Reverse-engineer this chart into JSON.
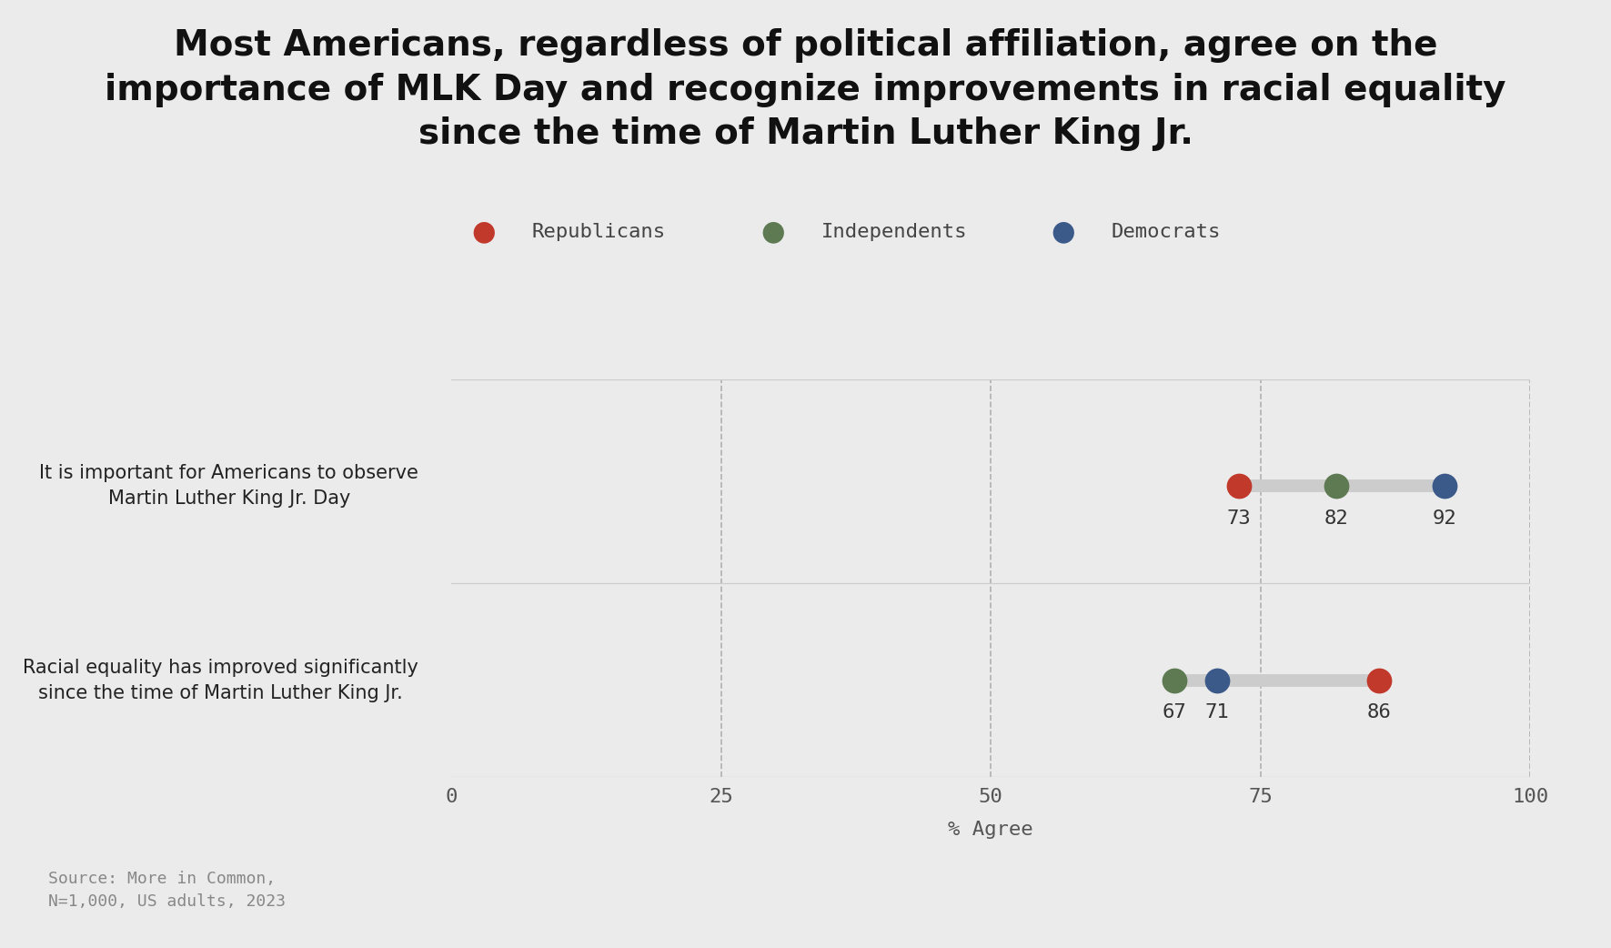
{
  "title": "Most Americans, regardless of political affiliation, agree on the\nimportance of MLK Day and recognize improvements in racial equality\nsince the time of Martin Luther King Jr.",
  "background_color": "#EBEBEB",
  "questions": [
    {
      "label": "It is important for Americans to observe\nMartin Luther King Jr. Day",
      "republicans": 73,
      "independents": 82,
      "democrats": 92
    },
    {
      "label": "Racial equality has improved significantly\nsince the time of Martin Luther King Jr.",
      "republicans": 86,
      "independents": 67,
      "democrats": 71
    }
  ],
  "colors": {
    "republicans": "#C1392B",
    "independents": "#5D7A52",
    "democrats": "#3B5A8A"
  },
  "legend_labels": [
    "Republicans",
    "Independents",
    "Democrats"
  ],
  "legend_colors": [
    "#C1392B",
    "#5D7A52",
    "#3B5A8A"
  ],
  "xlabel": "% Agree",
  "xlim": [
    0,
    100
  ],
  "xticks": [
    0,
    25,
    50,
    75,
    100
  ],
  "source_text": "Source: More in Common,\nN=1,000, US adults, 2023",
  "dot_size": 400,
  "line_color": "#CCCCCC",
  "title_fontsize": 28,
  "legend_fontsize": 16,
  "tick_fontsize": 16,
  "label_fontsize": 15
}
